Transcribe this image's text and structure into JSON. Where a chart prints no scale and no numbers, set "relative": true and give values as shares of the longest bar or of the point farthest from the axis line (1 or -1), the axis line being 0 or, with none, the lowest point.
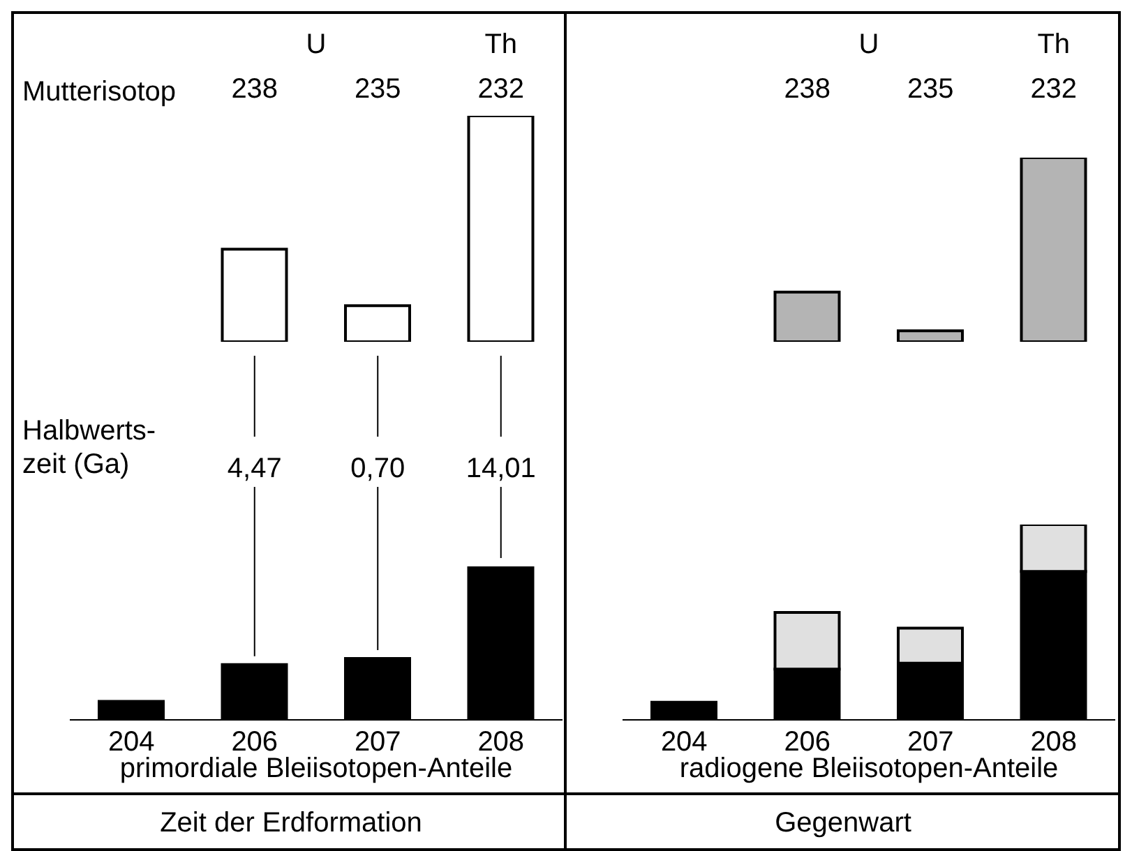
{
  "chart_data": [
    {
      "type": "bar",
      "relative": true,
      "categories": [
        null,
        "238",
        "235",
        "232"
      ],
      "xlabel": "Mutterisotop",
      "color": "#ffffff",
      "values": [
        null,
        0.41,
        0.16,
        1
      ],
      "annotations": [
        "U",
        "Th"
      ]
    },
    {
      "type": "bar",
      "relative": true,
      "categories": [
        "204",
        "206",
        "207",
        "208"
      ],
      "xlabel": "primordiale Bleiisotopen-Anteile",
      "color": "#000000",
      "values": [
        0.12,
        0.36,
        0.4,
        1
      ],
      "annotations": [
        "Halbwerts-\nzeit (Ga)",
        "4,47",
        "0,70",
        "14,01",
        "Zeit der Erdformation"
      ]
    },
    {
      "type": "bar",
      "relative": true,
      "categories": [
        null,
        "238",
        "235",
        "232"
      ],
      "color": "#b4b4b4",
      "values": [
        null,
        0.27,
        0.06,
        1
      ],
      "annotations": [
        "U",
        "Th"
      ]
    },
    {
      "type": "bar",
      "relative": true,
      "stacked": true,
      "categories": [
        "204",
        "206",
        "207",
        "208"
      ],
      "xlabel": "radiogene Bleiisotopen-Anteile",
      "series": [
        {
          "color": "#000000",
          "values": [
            0.09,
            0.26,
            0.29,
            0.76
          ]
        },
        {
          "color": "#e0e0e0",
          "values": [
            null,
            0.29,
            0.18,
            0.24
          ]
        }
      ],
      "annotations": [
        "Gegenwart"
      ]
    }
  ]
}
